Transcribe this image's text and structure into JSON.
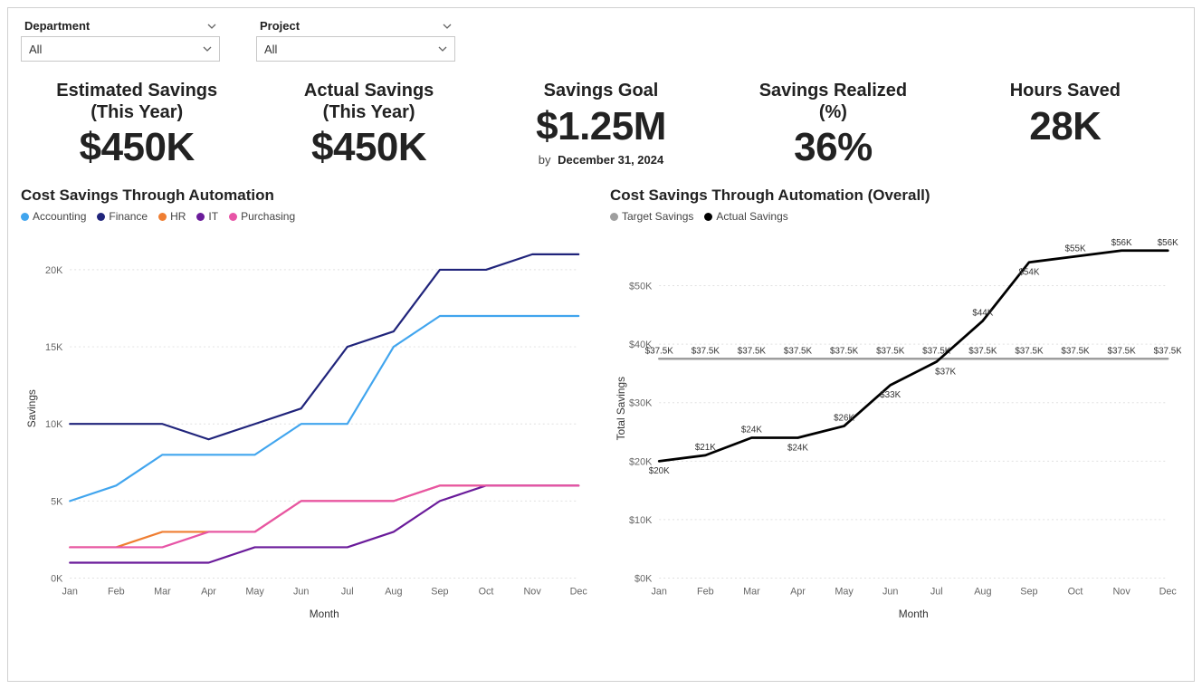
{
  "filters": {
    "department": {
      "label": "Department",
      "value": "All"
    },
    "project": {
      "label": "Project",
      "value": "All"
    }
  },
  "kpis": {
    "estimated": {
      "title": "Estimated Savings",
      "subtitle": "(This Year)",
      "value": "$450K"
    },
    "actual": {
      "title": "Actual Savings",
      "subtitle": "(This Year)",
      "value": "$450K"
    },
    "goal": {
      "title": "Savings Goal",
      "value": "$1.25M",
      "note_by": "by",
      "note_date": "December 31, 2024"
    },
    "realized": {
      "title": "Savings Realized",
      "subtitle": "(%)",
      "value": "36%"
    },
    "hours": {
      "title": "Hours Saved",
      "value": "28K"
    }
  },
  "chart1": {
    "title": "Cost Savings Through Automation",
    "type": "line",
    "x_axis_label": "Month",
    "y_axis_label": "Savings",
    "categories": [
      "Jan",
      "Feb",
      "Mar",
      "Apr",
      "May",
      "Jun",
      "Jul",
      "Aug",
      "Sep",
      "Oct",
      "Nov",
      "Dec"
    ],
    "ylim": [
      0,
      22
    ],
    "yticks": [
      0,
      5,
      10,
      15,
      20
    ],
    "ytick_labels": [
      "0K",
      "5K",
      "10K",
      "15K",
      "20K"
    ],
    "grid_color": "#e0e0e0",
    "line_width": 2.2,
    "series": [
      {
        "name": "Accounting",
        "color": "#41a5ee",
        "values": [
          5,
          6,
          8,
          8,
          8,
          10,
          10,
          15,
          17,
          17,
          17,
          17
        ]
      },
      {
        "name": "Finance",
        "color": "#20247b",
        "values": [
          10,
          10,
          10,
          9,
          10,
          11,
          15,
          16,
          20,
          20,
          21,
          21
        ]
      },
      {
        "name": "HR",
        "color": "#ef7e32",
        "values": [
          2,
          2,
          3,
          3,
          3,
          5,
          5,
          5,
          6,
          6,
          6,
          6
        ]
      },
      {
        "name": "IT",
        "color": "#6a1b9a",
        "values": [
          1,
          1,
          1,
          1,
          2,
          2,
          2,
          3,
          5,
          6,
          6,
          6
        ]
      },
      {
        "name": "Purchasing",
        "color": "#e754a6",
        "values": [
          2,
          2,
          2,
          3,
          3,
          5,
          5,
          5,
          6,
          6,
          6,
          6
        ]
      }
    ]
  },
  "chart2": {
    "title": "Cost Savings Through Automation (Overall)",
    "type": "line",
    "x_axis_label": "Month",
    "y_axis_label": "Total Savings",
    "categories": [
      "Jan",
      "Feb",
      "Mar",
      "Apr",
      "May",
      "Jun",
      "Jul",
      "Aug",
      "Sep",
      "Oct",
      "Nov",
      "Dec"
    ],
    "ylim": [
      0,
      58
    ],
    "yticks": [
      0,
      10,
      20,
      30,
      40,
      50
    ],
    "ytick_labels": [
      "$0K",
      "$10K",
      "$20K",
      "$30K",
      "$40K",
      "$50K"
    ],
    "grid_color": "#e0e0e0",
    "series": [
      {
        "name": "Target Savings",
        "color": "#9e9e9e",
        "line_width": 2.5,
        "values": [
          37.5,
          37.5,
          37.5,
          37.5,
          37.5,
          37.5,
          37.5,
          37.5,
          37.5,
          37.5,
          37.5,
          37.5
        ],
        "labels": [
          "$37.5K",
          "$37.5K",
          "$37.5K",
          "$37.5K",
          "$37.5K",
          "$37.5K",
          "$37.5K",
          "$37.5K",
          "$37.5K",
          "$37.5K",
          "$37.5K",
          "$37.5K"
        ],
        "label_dy": -6
      },
      {
        "name": "Actual Savings",
        "color": "#000000",
        "line_width": 2.8,
        "values": [
          20,
          21,
          24,
          24,
          26,
          33,
          37,
          44,
          54,
          55,
          56,
          56
        ],
        "labels": [
          "$20K",
          "$21K",
          "$24K",
          "$24K",
          "$26K",
          "$33K",
          "$37K",
          "$44K",
          "$54K",
          "$55K",
          "$56K",
          "$56K"
        ],
        "label_offsets": [
          {
            "dx": 0,
            "dy": 14
          },
          {
            "dx": 0,
            "dy": -6
          },
          {
            "dx": 0,
            "dy": -6
          },
          {
            "dx": 0,
            "dy": 14
          },
          {
            "dx": 0,
            "dy": -6
          },
          {
            "dx": 0,
            "dy": 14
          },
          {
            "dx": 10,
            "dy": 14
          },
          {
            "dx": 0,
            "dy": -6
          },
          {
            "dx": 0,
            "dy": 14
          },
          {
            "dx": 0,
            "dy": -6
          },
          {
            "dx": 0,
            "dy": -6
          },
          {
            "dx": 0,
            "dy": -6
          }
        ]
      }
    ]
  }
}
